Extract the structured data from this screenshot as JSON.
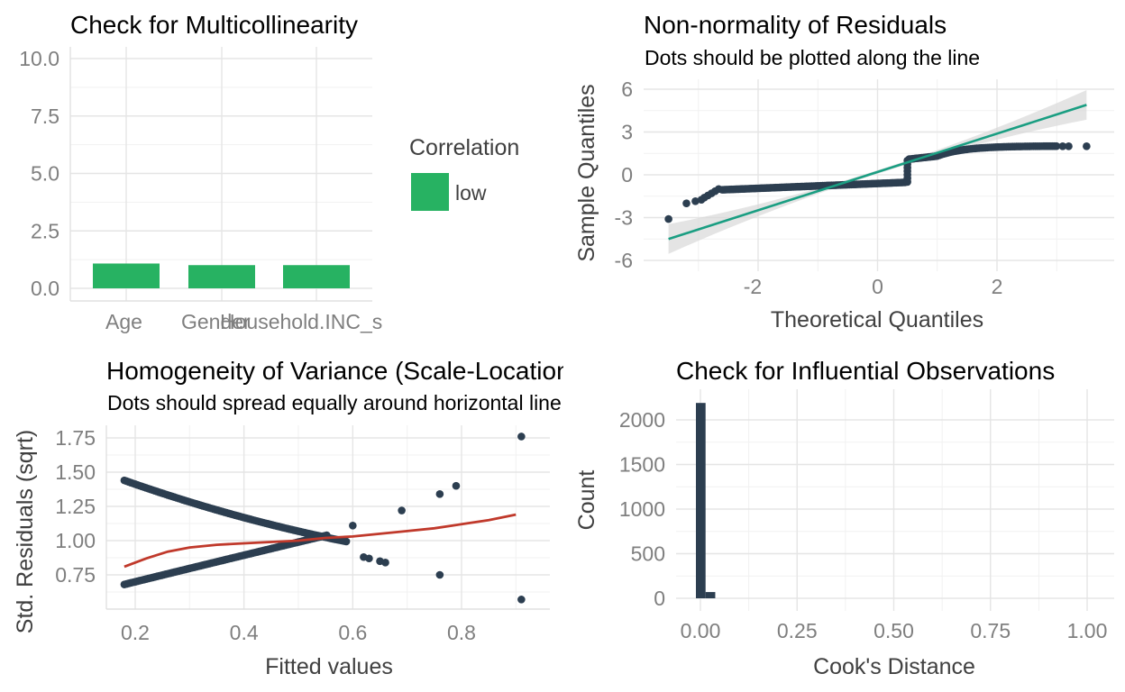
{
  "colors": {
    "low_bar": "#27b262",
    "points": "#2c3e50",
    "qq_line": "#1a9e82",
    "smooth_line": "#c0392b",
    "ci_band": "#d9d9d9"
  },
  "chart_data": [
    {
      "id": "multicollinearity",
      "type": "bar",
      "title": "Check for Multicollinearity",
      "xlabel": "",
      "ylabel": "",
      "categories": [
        "Age",
        "Gender",
        "Household.INC_s"
      ],
      "values": [
        1.08,
        1.01,
        1.01
      ],
      "group": [
        "low",
        "low",
        "low"
      ],
      "ylim": [
        0,
        10.0
      ],
      "yticks": [
        "0.0",
        "2.5",
        "5.0",
        "7.5",
        "10.0"
      ],
      "legend": {
        "title": "Correlation",
        "entries": [
          "low"
        ],
        "placement": "right"
      },
      "grid": true
    },
    {
      "id": "normality",
      "type": "scatter",
      "title": "Non-normality of Residuals",
      "subtitle": "Dots should be plotted along the line",
      "xlabel": "Theoretical Quantiles",
      "ylabel": "Sample Quantiles",
      "xlim": [
        -3.6,
        3.7
      ],
      "ylim": [
        -6,
        6
      ],
      "xticks": [
        "-2",
        "0",
        "2"
      ],
      "yticks": [
        "-6",
        "-3",
        "0",
        "3",
        "6"
      ],
      "reference_line": {
        "x": [
          -3.5,
          3.5
        ],
        "y": [
          -4.5,
          4.9
        ]
      },
      "grid": true
    },
    {
      "id": "homogeneity",
      "type": "scatter",
      "title": "Homogeneity of Variance (Scale-Location)",
      "subtitle": "Dots should spread equally around horizontal line",
      "xlabel": "Fitted values",
      "ylabel": "Std. Residuals (sqrt)",
      "xlim": [
        0.15,
        0.93
      ],
      "ylim": [
        0.6,
        1.8
      ],
      "xticks": [
        "0.2",
        "0.4",
        "0.6",
        "0.8"
      ],
      "yticks": [
        "0.75",
        "1.00",
        "1.25",
        "1.50",
        "1.75"
      ],
      "outliers": [
        {
          "x": 0.6,
          "y": 1.11
        },
        {
          "x": 0.69,
          "y": 1.22
        },
        {
          "x": 0.76,
          "y": 1.34
        },
        {
          "x": 0.79,
          "y": 1.4
        },
        {
          "x": 0.91,
          "y": 1.76
        },
        {
          "x": 0.76,
          "y": 0.75
        },
        {
          "x": 0.91,
          "y": 0.57
        },
        {
          "x": 0.65,
          "y": 0.85
        },
        {
          "x": 0.66,
          "y": 0.84
        },
        {
          "x": 0.62,
          "y": 0.88
        },
        {
          "x": 0.63,
          "y": 0.87
        }
      ],
      "smooth": {
        "x": [
          0.18,
          0.22,
          0.26,
          0.3,
          0.35,
          0.4,
          0.45,
          0.5,
          0.55,
          0.6,
          0.65,
          0.7,
          0.75,
          0.8,
          0.85,
          0.9
        ],
        "y": [
          0.81,
          0.87,
          0.92,
          0.95,
          0.97,
          0.98,
          0.99,
          1.0,
          1.02,
          1.03,
          1.05,
          1.07,
          1.09,
          1.12,
          1.15,
          1.19
        ]
      },
      "grid": true
    },
    {
      "id": "influential",
      "type": "bar",
      "title": "Check for Influential Observations",
      "xlabel": "Cook's Distance",
      "ylabel": "Count",
      "bins": [
        {
          "x0": 0.0,
          "x1": 0.025,
          "count": 2190
        },
        {
          "x0": 0.025,
          "x1": 0.05,
          "count": 70
        }
      ],
      "xlim": [
        -0.05,
        1.05
      ],
      "ylim": [
        0,
        2300
      ],
      "xticks": [
        "0.00",
        "0.25",
        "0.50",
        "0.75",
        "1.00"
      ],
      "yticks": [
        "0",
        "500",
        "1000",
        "1500",
        "2000"
      ],
      "grid": true
    }
  ]
}
